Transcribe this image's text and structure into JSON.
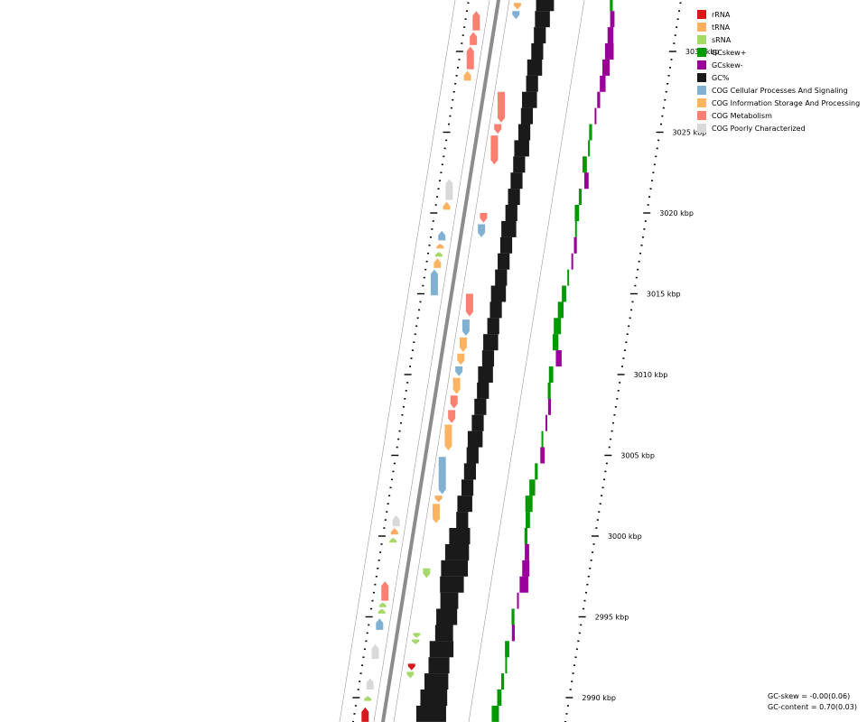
{
  "legend": {
    "items": [
      {
        "label": "rRNA",
        "color": "#d7191c"
      },
      {
        "label": "tRNA",
        "color": "#fdae61"
      },
      {
        "label": "sRNA",
        "color": "#a6d96a"
      },
      {
        "label": "GCskew+",
        "color": "#009900"
      },
      {
        "label": "GCskew-",
        "color": "#990099"
      },
      {
        "label": "GC%",
        "color": "#1a1a1a"
      },
      {
        "label": "COG Cellular Processes And Signaling",
        "color": "#80b1d3"
      },
      {
        "label": "COG Information Storage And Processing",
        "color": "#fdb462"
      },
      {
        "label": "COG Metabolism",
        "color": "#fb8072"
      },
      {
        "label": "COG Poorly Characterized",
        "color": "#d9d9d9"
      }
    ]
  },
  "scale": {
    "unit": "kbp",
    "ticks": [
      {
        "kbp": 3030,
        "label": "3030 kbp"
      },
      {
        "kbp": 3025,
        "label": "3025 kbp"
      },
      {
        "kbp": 3020,
        "label": "3020 kbp"
      },
      {
        "kbp": 3015,
        "label": "3015 kbp"
      },
      {
        "kbp": 3010,
        "label": "3010 kbp"
      },
      {
        "kbp": 3005,
        "label": "3005 kbp"
      },
      {
        "kbp": 3000,
        "label": "3000 kbp"
      },
      {
        "kbp": 2995,
        "label": "2995 kbp"
      },
      {
        "kbp": 2990,
        "label": "2990 kbp"
      }
    ]
  },
  "stats": {
    "gc_skew": "GC-skew = -0.00(0.06)",
    "gc_content": "GC-content = 0.70(0.03)"
  },
  "features": {
    "forward": [
      {
        "start": 3032.5,
        "end": 3031.3,
        "type": "COG Metabolism"
      },
      {
        "start": 3031.2,
        "end": 3030.4,
        "type": "COG Metabolism"
      },
      {
        "start": 3030.3,
        "end": 3028.9,
        "type": "COG Metabolism"
      },
      {
        "start": 3028.8,
        "end": 3028.2,
        "type": "COG Information Storage And Processing"
      },
      {
        "start": 3022.1,
        "end": 3020.8,
        "type": "COG Poorly Characterized"
      },
      {
        "start": 3020.7,
        "end": 3020.2,
        "type": "COG Information Storage And Processing"
      },
      {
        "start": 3018.9,
        "end": 3018.3,
        "type": "COG Cellular Processes And Signaling"
      },
      {
        "start": 3018.1,
        "end": 3017.8,
        "type": "tRNA"
      },
      {
        "start": 3017.6,
        "end": 3017.3,
        "type": "sRNA"
      },
      {
        "start": 3017.2,
        "end": 3016.6,
        "type": "COG Information Storage And Processing"
      },
      {
        "start": 3016.5,
        "end": 3014.9,
        "type": "COG Cellular Processes And Signaling"
      },
      {
        "start": 3001.3,
        "end": 3000.6,
        "type": "COG Poorly Characterized"
      },
      {
        "start": 3000.5,
        "end": 3000.1,
        "type": "tRNA"
      },
      {
        "start": 2999.9,
        "end": 2999.6,
        "type": "sRNA"
      },
      {
        "start": 2997.2,
        "end": 2996.0,
        "type": "COG Metabolism"
      },
      {
        "start": 2995.9,
        "end": 2995.6,
        "type": "sRNA"
      },
      {
        "start": 2995.5,
        "end": 2995.2,
        "type": "sRNA"
      },
      {
        "start": 2994.9,
        "end": 2994.2,
        "type": "COG Cellular Processes And Signaling"
      },
      {
        "start": 2993.3,
        "end": 2992.4,
        "type": "COG Poorly Characterized"
      },
      {
        "start": 2991.2,
        "end": 2990.5,
        "type": "COG Poorly Characterized"
      },
      {
        "start": 2990.1,
        "end": 2989.8,
        "type": "sRNA"
      },
      {
        "start": 2989.4,
        "end": 2988.5,
        "type": "rRNA"
      }
    ],
    "reverse": [
      {
        "start": 3033.0,
        "end": 3032.6,
        "type": "tRNA"
      },
      {
        "start": 3032.5,
        "end": 3032.0,
        "type": "COG Cellular Processes And Signaling"
      },
      {
        "start": 3027.5,
        "end": 3025.6,
        "type": "COG Metabolism"
      },
      {
        "start": 3025.5,
        "end": 3024.9,
        "type": "COG Metabolism"
      },
      {
        "start": 3024.8,
        "end": 3023.0,
        "type": "COG Metabolism"
      },
      {
        "start": 3020.0,
        "end": 3019.4,
        "type": "COG Metabolism"
      },
      {
        "start": 3019.3,
        "end": 3018.5,
        "type": "COG Cellular Processes And Signaling"
      },
      {
        "start": 3015.0,
        "end": 3013.6,
        "type": "COG Metabolism"
      },
      {
        "start": 3013.4,
        "end": 3012.4,
        "type": "COG Cellular Processes And Signaling"
      },
      {
        "start": 3012.3,
        "end": 3011.4,
        "type": "COG Information Storage And Processing"
      },
      {
        "start": 3011.3,
        "end": 3010.6,
        "type": "COG Information Storage And Processing"
      },
      {
        "start": 3010.5,
        "end": 3009.9,
        "type": "COG Cellular Processes And Signaling"
      },
      {
        "start": 3009.8,
        "end": 3008.8,
        "type": "COG Information Storage And Processing"
      },
      {
        "start": 3008.7,
        "end": 3007.9,
        "type": "COG Metabolism"
      },
      {
        "start": 3007.8,
        "end": 3007.0,
        "type": "COG Metabolism"
      },
      {
        "start": 3006.9,
        "end": 3005.3,
        "type": "COG Information Storage And Processing"
      },
      {
        "start": 3004.9,
        "end": 3002.6,
        "type": "COG Cellular Processes And Signaling"
      },
      {
        "start": 3002.5,
        "end": 3002.1,
        "type": "tRNA"
      },
      {
        "start": 3002.0,
        "end": 3000.8,
        "type": "COG Information Storage And Processing"
      },
      {
        "start": 3002.5,
        "end": 3002.1,
        "type": "tRNA"
      },
      {
        "start": 2998.0,
        "end": 2997.4,
        "type": "sRNA"
      },
      {
        "start": 2994.0,
        "end": 2993.7,
        "type": "sRNA"
      },
      {
        "start": 2993.6,
        "end": 2993.3,
        "type": "sRNA"
      },
      {
        "start": 2991.6,
        "end": 2991.2,
        "type": "sRNA"
      },
      {
        "start": 2992.1,
        "end": 2991.7,
        "type": "rRNA"
      }
    ]
  },
  "gc_content": {
    "positions_kbp": [
      3033,
      3032,
      3031,
      3030,
      3029,
      3028,
      3027,
      3026,
      3025,
      3024,
      3023,
      3022,
      3021,
      3020,
      3019,
      3018,
      3017,
      3016,
      3015,
      3014,
      3013,
      3012,
      3011,
      3010,
      3009,
      3008,
      3007,
      3006,
      3005,
      3004,
      3003,
      3002,
      3001,
      3000,
      2999,
      2998,
      2997,
      2996,
      2995,
      2994,
      2993,
      2992,
      2991,
      2990,
      2989
    ],
    "values": [
      0.72,
      0.71,
      0.7,
      0.7,
      0.71,
      0.7,
      0.71,
      0.7,
      0.7,
      0.71,
      0.7,
      0.7,
      0.7,
      0.7,
      0.71,
      0.7,
      0.7,
      0.7,
      0.71,
      0.7,
      0.7,
      0.71,
      0.7,
      0.71,
      0.7,
      0.7,
      0.7,
      0.71,
      0.7,
      0.7,
      0.7,
      0.71,
      0.7,
      0.73,
      0.74,
      0.75,
      0.74,
      0.72,
      0.73,
      0.72,
      0.74,
      0.73,
      0.74,
      0.75,
      0.76
    ]
  },
  "gc_skew": {
    "positions_kbp": [
      3033,
      3032,
      3031,
      3030,
      3029,
      3028,
      3027,
      3026,
      3025,
      3024,
      3023,
      3022,
      3021,
      3020,
      3019,
      3018,
      3017,
      3016,
      3015,
      3014,
      3013,
      3012,
      3011,
      3010,
      3009,
      3008,
      3007,
      3006,
      3005,
      3004,
      3003,
      3002,
      3001,
      3000,
      2999,
      2998,
      2997,
      2996,
      2995,
      2994,
      2993,
      2992,
      2991,
      2990,
      2989
    ],
    "values": [
      0.02,
      -0.03,
      -0.04,
      -0.06,
      -0.05,
      -0.04,
      -0.02,
      -0.01,
      0.02,
      0.01,
      0.03,
      -0.03,
      0.02,
      0.03,
      0.01,
      -0.02,
      -0.01,
      0.01,
      0.03,
      0.04,
      0.05,
      0.04,
      -0.04,
      0.03,
      0.02,
      -0.02,
      -0.01,
      0.01,
      -0.03,
      0.02,
      0.04,
      0.05,
      0.03,
      0.02,
      -0.03,
      -0.05,
      -0.06,
      -0.01,
      0.02,
      -0.02,
      0.03,
      0.01,
      0.02,
      0.03,
      0.05
    ]
  }
}
